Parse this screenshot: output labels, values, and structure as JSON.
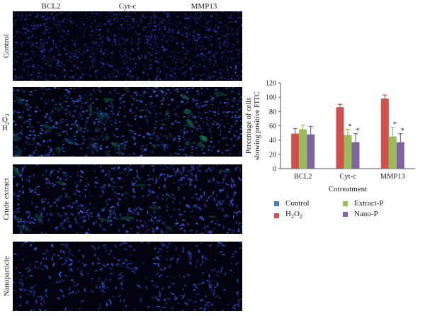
{
  "figure": {
    "columns": [
      "BCL2",
      "Cyt-c",
      "MMP13"
    ],
    "rows": [
      {
        "key": "control",
        "label": "Control",
        "main": "Control",
        "sub": "",
        "style": "dense-dark"
      },
      {
        "key": "h2o2",
        "label": "H2O2",
        "main": "H",
        "sub": "2",
        "main2": "O",
        "sub2": "2",
        "style": "green-stained"
      },
      {
        "key": "crude",
        "label": "Crude extract",
        "main": "Crude extract",
        "sub": "",
        "style": "spindle-mixed"
      },
      {
        "key": "nano",
        "label": "Nanoparticle",
        "main": "Nanoparticle",
        "sub": "",
        "style": "sparse-spindle"
      }
    ]
  },
  "chart_data": {
    "type": "bar",
    "categories": [
      "BCL2",
      "Cyt-c",
      "MMP13"
    ],
    "xlabel": "Cotreatment",
    "ylabel_lines": [
      "Percentage of cells",
      "showing positive FITC"
    ],
    "ylim": [
      0,
      120
    ],
    "yticks": [
      0,
      20,
      40,
      60,
      80,
      100,
      120
    ],
    "series": [
      {
        "name": "Control",
        "legend_main": "Control",
        "legend_sub": "",
        "color": "#4a7ebb",
        "values": [
          null,
          null,
          null
        ],
        "errors": [
          null,
          null,
          null
        ]
      },
      {
        "name": "H2O2",
        "legend_main": "H",
        "legend_sub": "2",
        "legend_main2": "O",
        "legend_sub2": "2",
        "color": "#d0504d",
        "values": [
          49,
          86,
          98
        ],
        "errors": [
          7,
          4,
          5
        ]
      },
      {
        "name": "Extract-P",
        "legend_main": "Extract-P",
        "legend_sub": "",
        "color": "#9bbb59",
        "values": [
          55,
          47,
          45
        ],
        "errors": [
          6,
          8,
          13
        ]
      },
      {
        "name": "Nano-P",
        "legend_main": "Nano-P",
        "legend_sub": "",
        "color": "#8064a2",
        "values": [
          48,
          37,
          37
        ],
        "errors": [
          11,
          12,
          12
        ]
      }
    ],
    "significance": [
      {
        "category": "Cyt-c",
        "series": "Extract-P",
        "mark": "*"
      },
      {
        "category": "Cyt-c",
        "series": "Nano-P",
        "mark": "*"
      },
      {
        "category": "MMP13",
        "series": "Extract-P",
        "mark": "*"
      },
      {
        "category": "MMP13",
        "series": "Nano-P",
        "mark": "*"
      }
    ],
    "legend_position": "bottom"
  }
}
